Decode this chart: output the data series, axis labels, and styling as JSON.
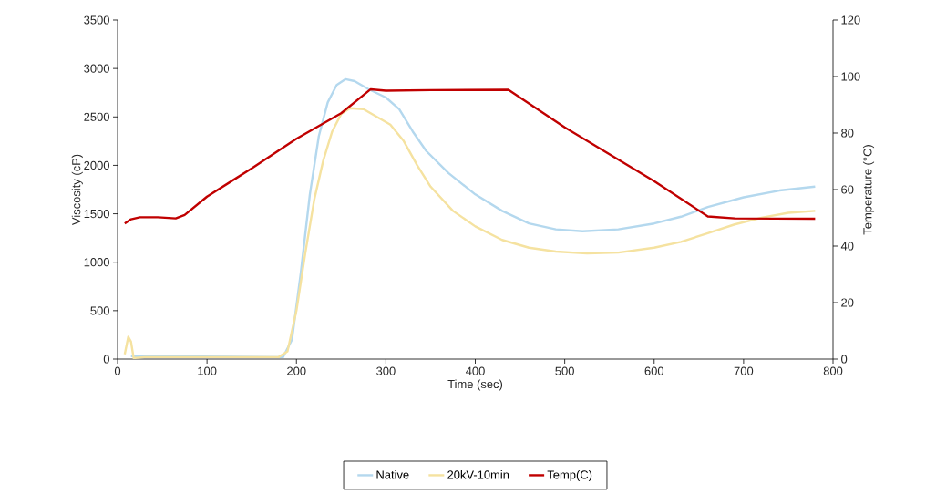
{
  "chart_data": {
    "type": "line",
    "xlabel": "Time (sec)",
    "ylabel": "Viscosity (cP)",
    "y2label": "Temperature (°C)",
    "xlim": [
      0,
      800
    ],
    "xticks": [
      0,
      100,
      200,
      300,
      400,
      500,
      600,
      700,
      800
    ],
    "ylim": [
      0,
      3500
    ],
    "yticks": [
      0,
      500,
      1000,
      1500,
      2000,
      2500,
      3000,
      3500
    ],
    "y2lim": [
      0,
      120
    ],
    "y2ticks": [
      0,
      20,
      40,
      60,
      80,
      100,
      120
    ],
    "legend": "bottom",
    "line_style": "solid",
    "series": [
      {
        "name": "Native",
        "color": "#b4d8ee",
        "x": [
          15,
          185,
          195,
          205,
          215,
          225,
          235,
          245,
          255,
          265,
          280,
          300,
          315,
          330,
          345,
          370,
          400,
          430,
          460,
          490,
          520,
          560,
          600,
          630,
          660,
          700,
          740,
          780
        ],
        "values": [
          30,
          20,
          200,
          900,
          1700,
          2300,
          2650,
          2830,
          2890,
          2870,
          2790,
          2700,
          2580,
          2350,
          2150,
          1920,
          1700,
          1530,
          1400,
          1340,
          1320,
          1340,
          1400,
          1470,
          1570,
          1670,
          1740,
          1780
        ]
      },
      {
        "name": "20kV-10min",
        "color": "#f5e2a0",
        "x": [
          8,
          12,
          15,
          18,
          30,
          100,
          180,
          190,
          200,
          210,
          220,
          230,
          240,
          250,
          260,
          275,
          290,
          305,
          320,
          335,
          350,
          375,
          400,
          430,
          460,
          490,
          525,
          560,
          600,
          630,
          660,
          690,
          720,
          750,
          780
        ],
        "values": [
          50,
          230,
          180,
          10,
          20,
          20,
          20,
          80,
          500,
          1100,
          1650,
          2050,
          2350,
          2530,
          2590,
          2580,
          2500,
          2420,
          2250,
          2000,
          1780,
          1530,
          1370,
          1230,
          1150,
          1110,
          1090,
          1100,
          1150,
          1210,
          1300,
          1390,
          1460,
          1510,
          1530
        ]
      },
      {
        "name": "Temp(C)",
        "color": "#c00000",
        "axis": "y2",
        "x": [
          8,
          15,
          25,
          45,
          65,
          75,
          100,
          150,
          200,
          250,
          283,
          300,
          350,
          437,
          500,
          600,
          660,
          690,
          780
        ],
        "values": [
          48,
          49.5,
          50.2,
          50.2,
          49.8,
          51,
          57.5,
          67.5,
          78,
          87,
          95.5,
          95,
          95.2,
          95.3,
          82,
          63,
          50.5,
          49.8,
          49.7
        ]
      }
    ]
  }
}
